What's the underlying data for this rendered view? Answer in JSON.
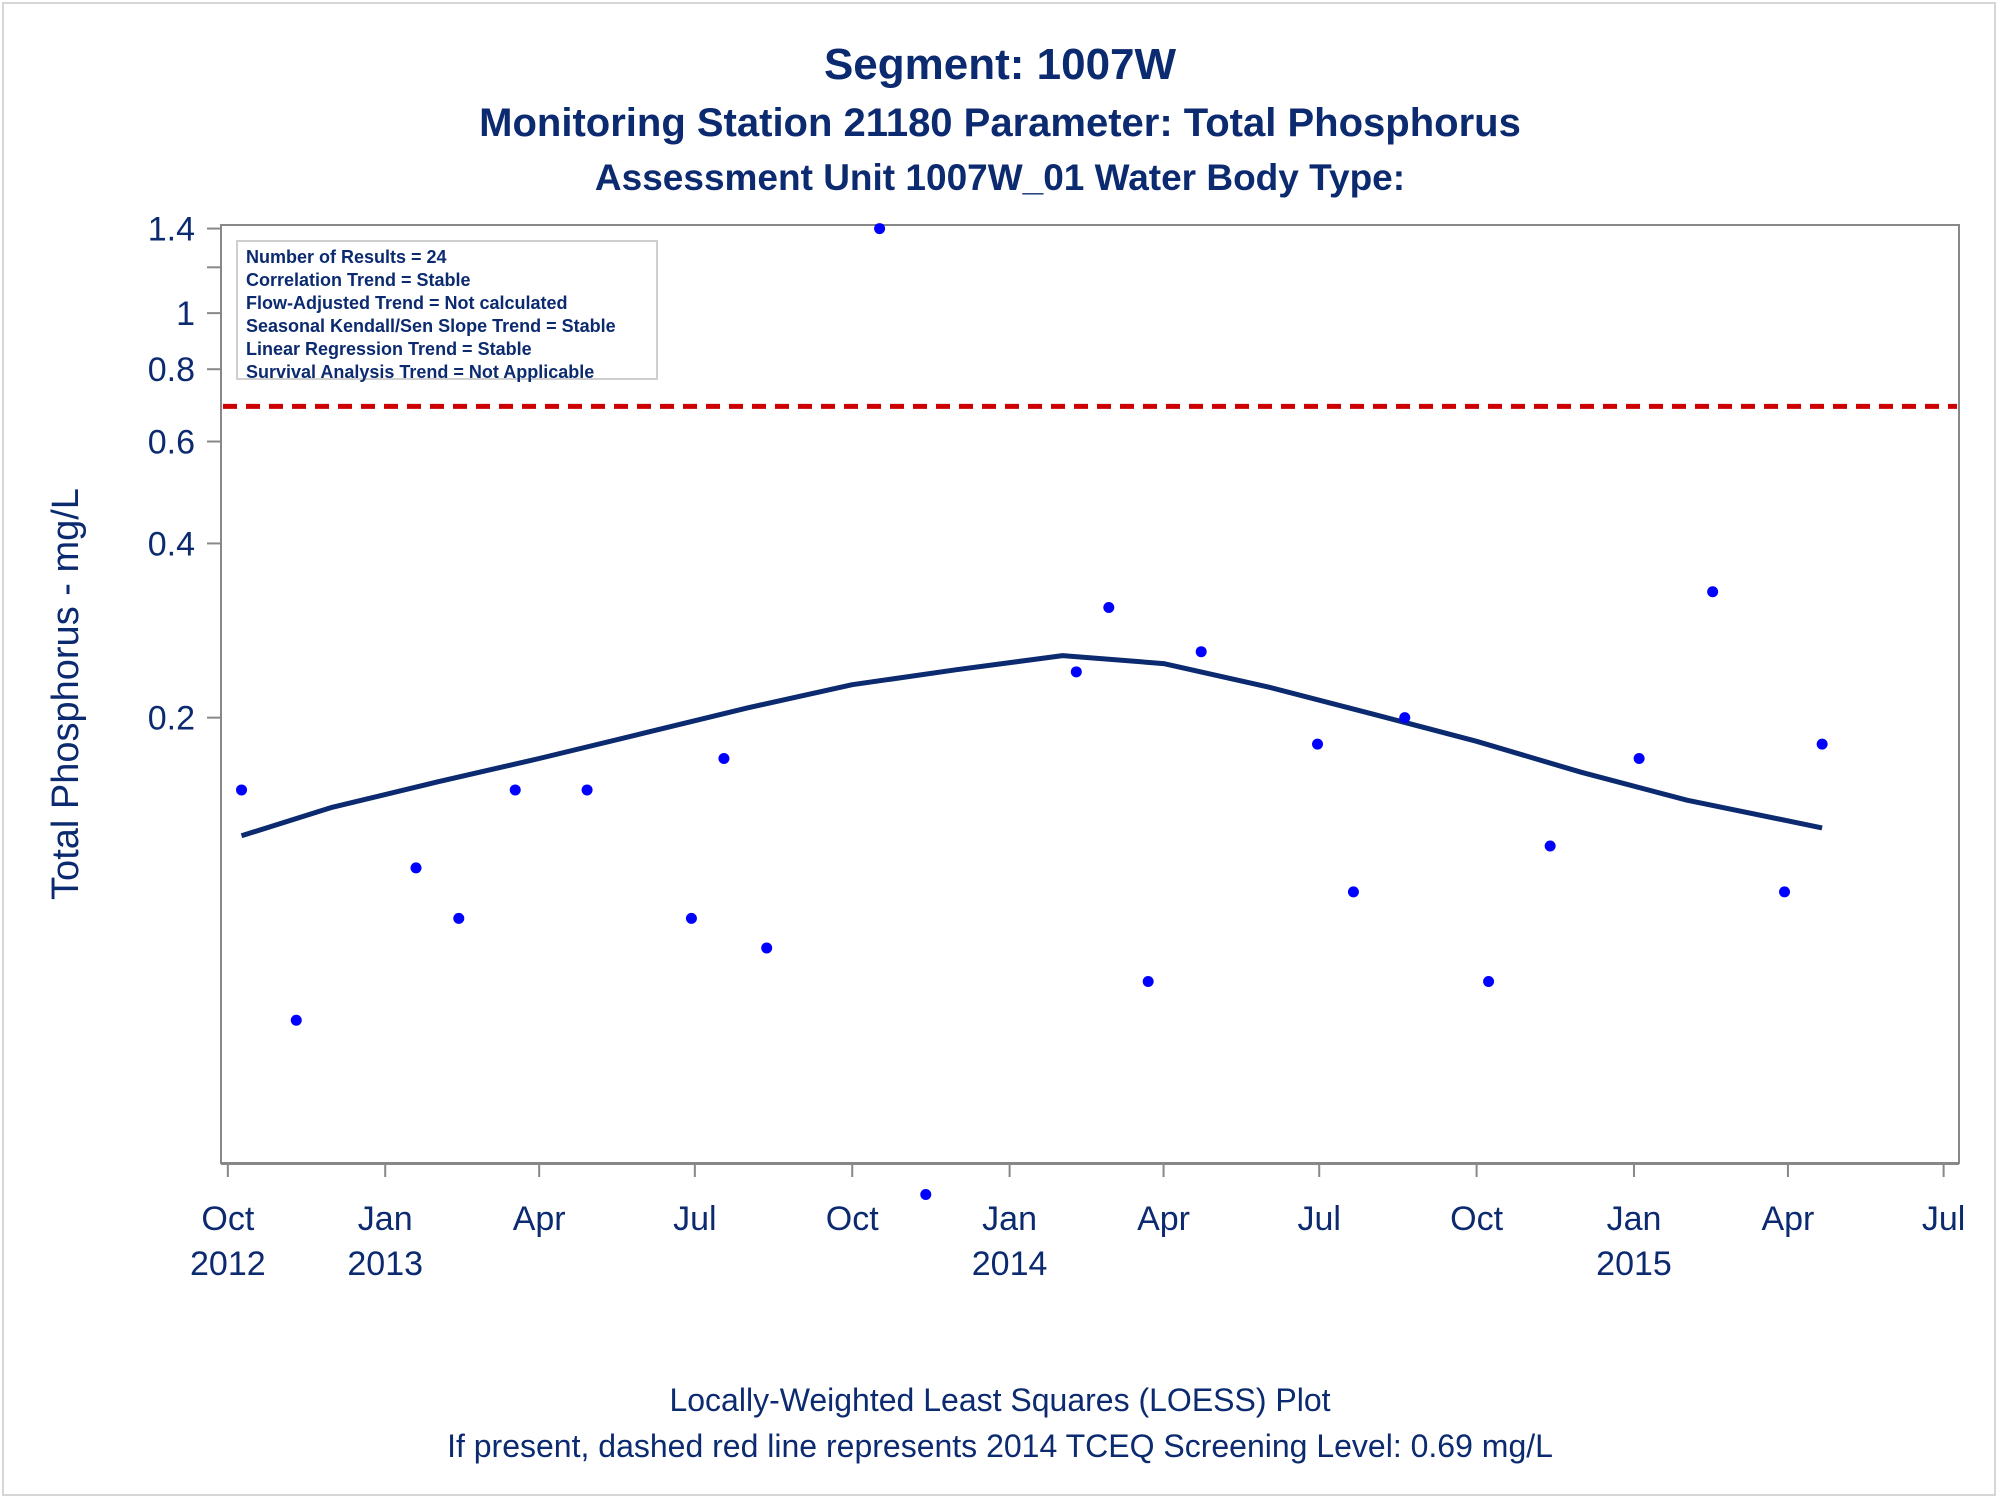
{
  "header": {
    "title": "Segment: 1007W",
    "subtitle1": "Monitoring Station 21180 Parameter: Total Phosphorus",
    "subtitle2": "Assessment Unit 1007W_01   Water Body Type:"
  },
  "stats": [
    "Number of Results = 24",
    "Correlation Trend = Stable",
    "Flow-Adjusted Trend = Not calculated",
    "Seasonal Kendall/Sen Slope Trend = Stable",
    "Linear Regression Trend = Stable",
    "Survival Analysis Trend = Not Applicable"
  ],
  "footer": {
    "line1": "Locally-Weighted Least Squares (LOESS) Plot",
    "line2": "If present, dashed red line represents 2014 TCEQ Screening Level: 0.69 mg/L"
  },
  "colors": {
    "text": "#0b2a6f",
    "points": "#0000ff",
    "loess": "#0b2a6f",
    "screening": "#cc0000",
    "axis": "#888888"
  },
  "chart_data": {
    "type": "scatter",
    "ylabel": "Total Phosphorus - mg/L",
    "yscale": "log",
    "ylim": [
      0.034,
      1.42
    ],
    "xlim": [
      "2012-09-27",
      "2015-07-10"
    ],
    "y_ticks": [
      {
        "value": 0.2,
        "label": "0.2"
      },
      {
        "value": 0.4,
        "label": "0.4"
      },
      {
        "value": 0.6,
        "label": "0.6"
      },
      {
        "value": 0.8,
        "label": "0.8"
      },
      {
        "value": 1.0,
        "label": "1"
      },
      {
        "value": 1.2,
        "label": ""
      },
      {
        "value": 1.4,
        "label": "1.4"
      }
    ],
    "x_ticks": [
      {
        "date": "2012-10-01",
        "month": "Oct",
        "year": "2012"
      },
      {
        "date": "2013-01-01",
        "month": "Jan",
        "year": "2013"
      },
      {
        "date": "2013-04-01",
        "month": "Apr",
        "year": ""
      },
      {
        "date": "2013-07-01",
        "month": "Jul",
        "year": ""
      },
      {
        "date": "2013-10-01",
        "month": "Oct",
        "year": ""
      },
      {
        "date": "2014-01-01",
        "month": "Jan",
        "year": "2014"
      },
      {
        "date": "2014-04-01",
        "month": "Apr",
        "year": ""
      },
      {
        "date": "2014-07-01",
        "month": "Jul",
        "year": ""
      },
      {
        "date": "2014-10-01",
        "month": "Oct",
        "year": ""
      },
      {
        "date": "2015-01-01",
        "month": "Jan",
        "year": "2015"
      },
      {
        "date": "2015-04-01",
        "month": "Apr",
        "year": ""
      },
      {
        "date": "2015-07-01",
        "month": "Jul",
        "year": ""
      }
    ],
    "screening_level": 0.69,
    "series": [
      {
        "points": [
          {
            "date": "2012-10-09",
            "value": 0.15
          },
          {
            "date": "2012-11-10",
            "value": 0.06
          },
          {
            "date": "2013-01-19",
            "value": 0.11
          },
          {
            "date": "2013-02-13",
            "value": 0.09
          },
          {
            "date": "2013-03-18",
            "value": 0.15
          },
          {
            "date": "2013-04-29",
            "value": 0.15
          },
          {
            "date": "2013-06-29",
            "value": 0.09
          },
          {
            "date": "2013-07-18",
            "value": 0.17
          },
          {
            "date": "2013-08-12",
            "value": 0.08
          },
          {
            "date": "2013-10-17",
            "value": 1.4
          },
          {
            "date": "2013-11-13",
            "value": 0.03
          },
          {
            "date": "2014-02-09",
            "value": 0.24
          },
          {
            "date": "2014-02-28",
            "value": 0.31
          },
          {
            "date": "2014-03-23",
            "value": 0.07
          },
          {
            "date": "2014-04-23",
            "value": 0.26
          },
          {
            "date": "2014-06-30",
            "value": 0.18
          },
          {
            "date": "2014-07-21",
            "value": 0.1
          },
          {
            "date": "2014-08-20",
            "value": 0.2
          },
          {
            "date": "2014-10-08",
            "value": 0.07
          },
          {
            "date": "2014-11-13",
            "value": 0.12
          },
          {
            "date": "2015-01-04",
            "value": 0.17
          },
          {
            "date": "2015-02-16",
            "value": 0.33
          },
          {
            "date": "2015-03-30",
            "value": 0.1
          },
          {
            "date": "2015-04-21",
            "value": 0.18
          }
        ]
      },
      {
        "loess": [
          {
            "date": "2012-10-09",
            "value": 0.125
          },
          {
            "date": "2012-12-01",
            "value": 0.14
          },
          {
            "date": "2013-02-01",
            "value": 0.155
          },
          {
            "date": "2013-04-01",
            "value": 0.17
          },
          {
            "date": "2013-06-01",
            "value": 0.188
          },
          {
            "date": "2013-08-01",
            "value": 0.208
          },
          {
            "date": "2013-10-01",
            "value": 0.228
          },
          {
            "date": "2013-12-01",
            "value": 0.242
          },
          {
            "date": "2014-02-01",
            "value": 0.256
          },
          {
            "date": "2014-04-01",
            "value": 0.248
          },
          {
            "date": "2014-06-01",
            "value": 0.226
          },
          {
            "date": "2014-08-01",
            "value": 0.203
          },
          {
            "date": "2014-10-01",
            "value": 0.182
          },
          {
            "date": "2014-12-01",
            "value": 0.161
          },
          {
            "date": "2015-02-01",
            "value": 0.144
          },
          {
            "date": "2015-04-21",
            "value": 0.129
          }
        ]
      }
    ]
  }
}
